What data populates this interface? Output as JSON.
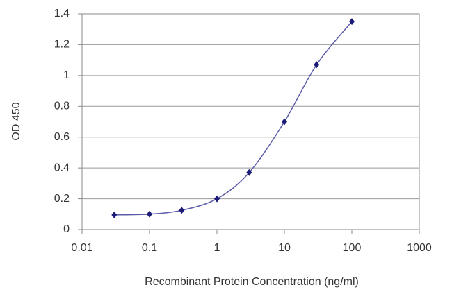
{
  "chart_data": {
    "type": "scatter",
    "x_label": "Recombinant Protein Concentration (ng/ml)",
    "y_label": "OD 450",
    "x_log": true,
    "grid": true,
    "line": "smooth",
    "series": [
      {
        "color": "#1c1c78",
        "line_color": "#5b5ba8",
        "x": [
          0.03,
          0.1,
          0.3,
          1,
          3,
          10,
          30,
          100
        ],
        "values": [
          0.095,
          0.1,
          0.125,
          0.2,
          0.37,
          0.7,
          1.07,
          1.35
        ]
      }
    ],
    "xlim": [
      0.01,
      1000
    ],
    "xticks": [
      0.01,
      0.1,
      1,
      10,
      100,
      1000
    ],
    "ylim": [
      0,
      1.4
    ],
    "yticks": [
      0,
      0.2,
      0.4,
      0.6,
      0.8,
      1,
      1.2,
      1.4
    ]
  }
}
